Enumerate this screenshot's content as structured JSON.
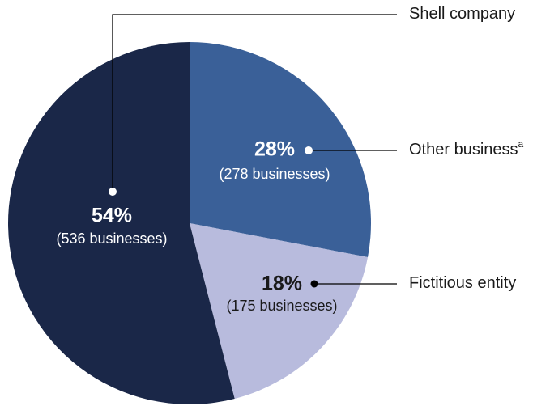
{
  "chart_data": {
    "type": "pie",
    "categories": [
      "Other business",
      "Fictitious entity",
      "Shell company"
    ],
    "values": [
      28,
      18,
      54
    ],
    "value_labels": [
      "28%",
      "18%",
      "54%"
    ],
    "counts": [
      278,
      175,
      536
    ],
    "count_labels": [
      "(278 businesses)",
      "(175 businesses)",
      "(536 businesses)"
    ],
    "colors": [
      "#3a6098",
      "#b8bbdd",
      "#1a2748"
    ],
    "annotations": [
      {
        "category": 0,
        "text": "a"
      }
    ]
  }
}
